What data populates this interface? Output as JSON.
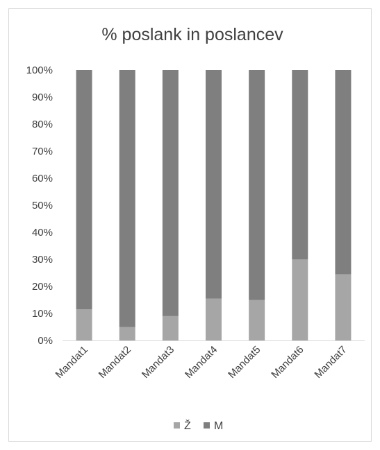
{
  "chart_data": {
    "type": "bar",
    "stacked": true,
    "title": "% poslank in poslancev",
    "categories": [
      "Mandat1",
      "Mandat2",
      "Mandat3",
      "Mandat4",
      "Mandat5",
      "Mandat6",
      "Mandat7"
    ],
    "series": [
      {
        "name": "Ž",
        "color": "#a6a6a6",
        "values": [
          11.5,
          5,
          9,
          15.5,
          15,
          30,
          24.5
        ]
      },
      {
        "name": "M",
        "color": "#7f7f7f",
        "values": [
          88.5,
          95,
          91,
          84.5,
          85,
          70,
          75.5
        ]
      }
    ],
    "y_ticks": [
      "0%",
      "10%",
      "20%",
      "30%",
      "40%",
      "50%",
      "60%",
      "70%",
      "80%",
      "90%",
      "100%"
    ],
    "ylim": [
      0,
      100
    ],
    "grid": false,
    "legend_position": "bottom"
  }
}
